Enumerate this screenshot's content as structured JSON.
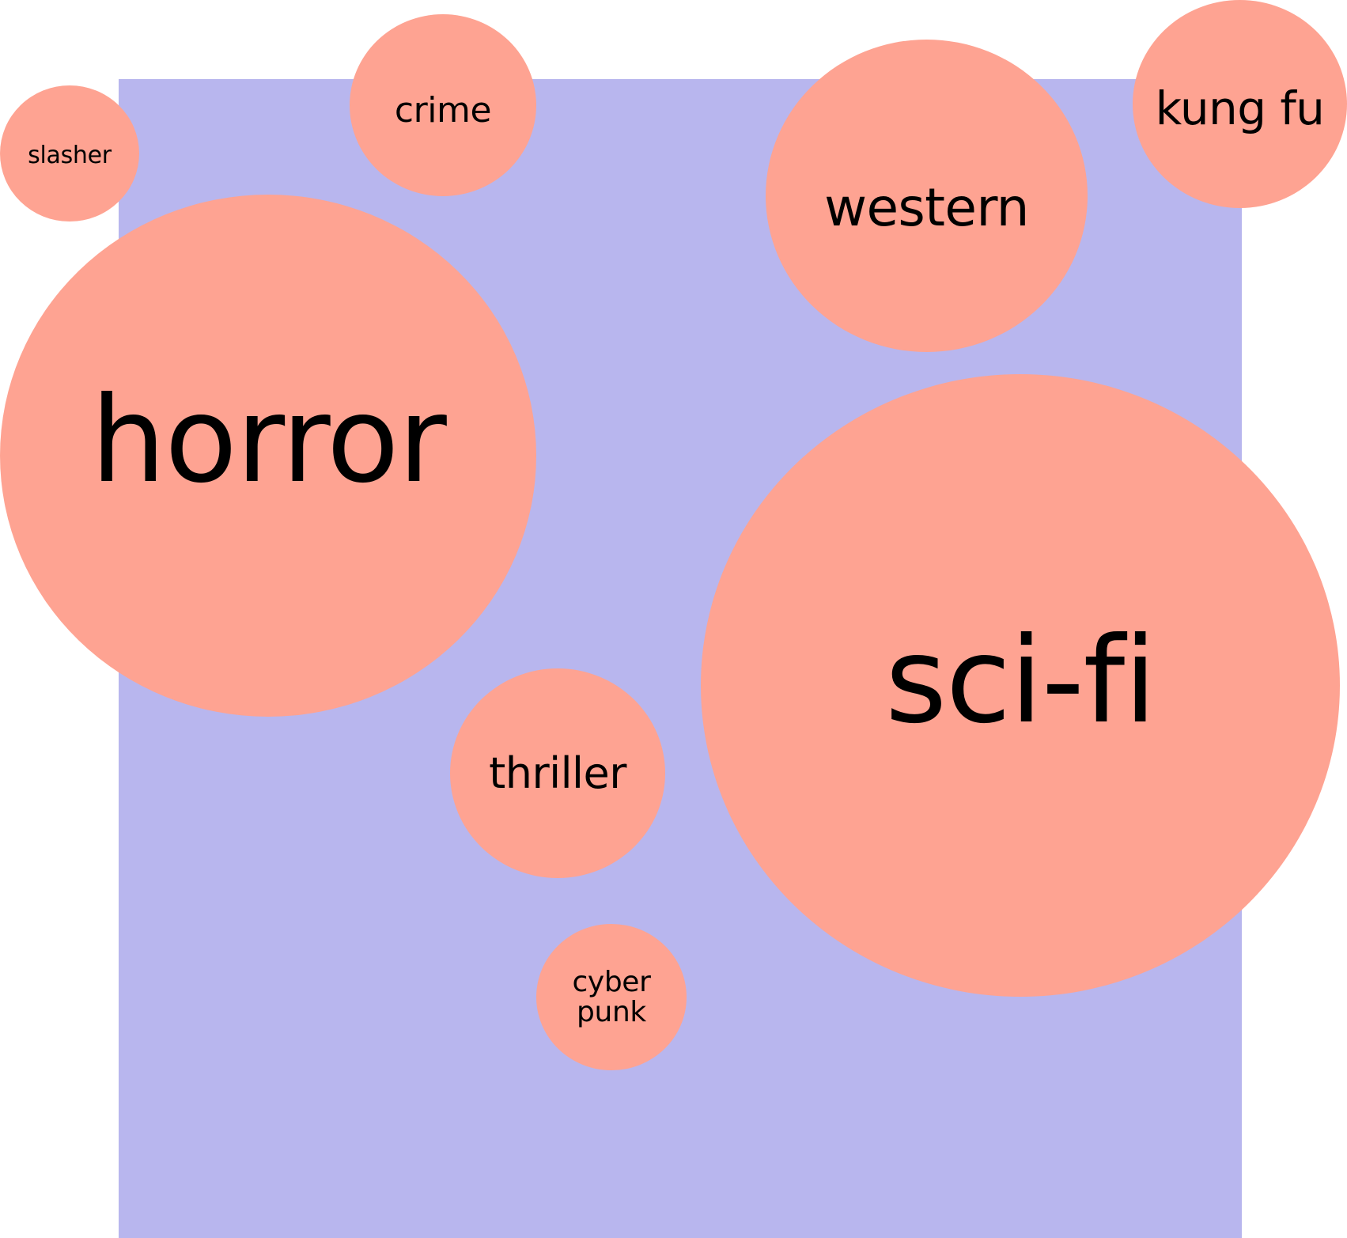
{
  "colors": {
    "background": "#ffffff",
    "panel": "#b8b6ee",
    "bubble": "#fea392",
    "text": "#000000"
  },
  "bubbles": [
    {
      "id": "slasher",
      "label": "slasher"
    },
    {
      "id": "crime",
      "label": "crime"
    },
    {
      "id": "western",
      "label": "western"
    },
    {
      "id": "kungfu",
      "label": "kung fu"
    },
    {
      "id": "horror",
      "label": "horror"
    },
    {
      "id": "scifi",
      "label": "sci-fi"
    },
    {
      "id": "thriller",
      "label": "thriller"
    },
    {
      "id": "cyberpunk",
      "label": "cyber\npunk"
    }
  ]
}
